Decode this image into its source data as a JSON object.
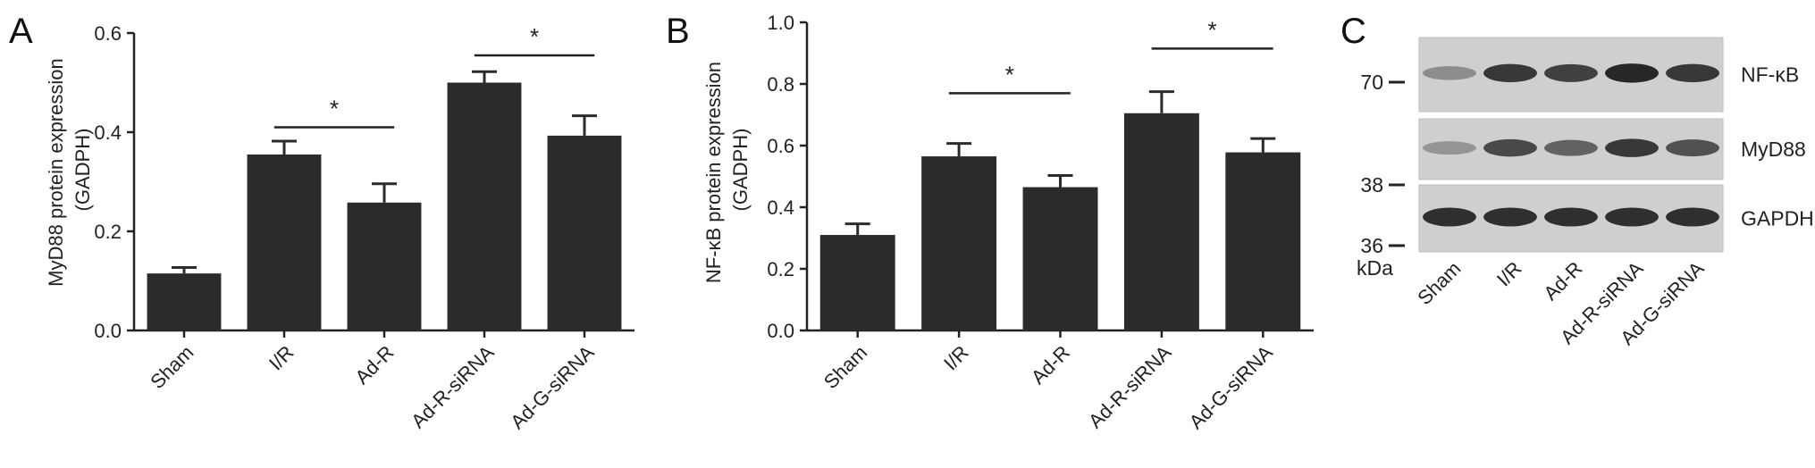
{
  "chart_data": [
    {
      "panel": "A",
      "type": "bar",
      "ylabel": "MyD88 protein expression\n(GADPH)",
      "categories": [
        "Sham",
        "I/R",
        "Ad-R",
        "Ad-R-siRNA",
        "Ad-G-siRNA"
      ],
      "values": [
        0.115,
        0.355,
        0.258,
        0.5,
        0.393
      ],
      "errors": [
        0.012,
        0.027,
        0.038,
        0.022,
        0.04
      ],
      "ylim": [
        0,
        0.6
      ],
      "yticks": [
        "0.0",
        "0.2",
        "0.4",
        "0.6"
      ],
      "annotations": [
        {
          "text": "*",
          "from": 1,
          "to": 2,
          "y": 0.41
        },
        {
          "text": "*",
          "from": 3,
          "to": 4,
          "y": 0.555
        }
      ],
      "color": "#2b2b2b"
    },
    {
      "panel": "B",
      "type": "bar",
      "ylabel": "NF-κB protein expression\n(GADPH)",
      "categories": [
        "Sham",
        "I/R",
        "Ad-R",
        "Ad-R-siRNA",
        "Ad-G-siRNA"
      ],
      "values": [
        0.31,
        0.565,
        0.465,
        0.705,
        0.578
      ],
      "errors": [
        0.036,
        0.042,
        0.038,
        0.07,
        0.045
      ],
      "ylim": [
        0,
        1.0
      ],
      "yticks": [
        "0.0",
        "0.2",
        "0.4",
        "0.6",
        "0.8",
        "1.0"
      ],
      "annotations": [
        {
          "text": "*",
          "from": 1,
          "to": 2,
          "y": 0.77
        },
        {
          "text": "*",
          "from": 3,
          "to": 4,
          "y": 0.915
        }
      ],
      "color": "#2b2b2b"
    }
  ],
  "blot": {
    "panel": "C",
    "lanes": [
      "Sham",
      "I/R",
      "Ad-R",
      "Ad-R-siRNA",
      "Ad-G-siRNA"
    ],
    "markers": [
      "70",
      "38",
      "36",
      "kDa"
    ],
    "rows": [
      {
        "label": "NF-κB",
        "intensity": [
          0.35,
          0.85,
          0.8,
          0.95,
          0.85
        ]
      },
      {
        "label": "MyD88",
        "intensity": [
          0.3,
          0.75,
          0.6,
          0.85,
          0.7
        ]
      },
      {
        "label": "GAPDH",
        "intensity": [
          0.9,
          0.9,
          0.9,
          0.9,
          0.9
        ]
      }
    ]
  }
}
